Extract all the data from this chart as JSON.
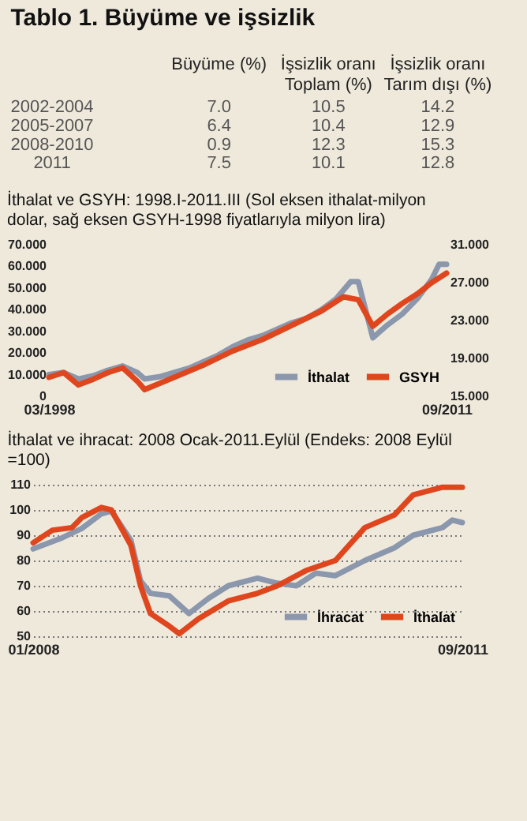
{
  "chart_data": [
    {
      "type": "other",
      "title": "Tablo 1. Büyüme ve işsizlik",
      "categories": [
        "2002-2004",
        "2005-2007",
        "2008-2010",
        "2011"
      ],
      "series": [
        {
          "name": "Büyüme (%)",
          "values": [
            7.0,
            6.4,
            0.9,
            7.5
          ],
          "value_labels": [
            "7.0",
            "6.4",
            "0.9",
            "7.5"
          ]
        },
        {
          "name": "İşsizlik oranı\nToplam (%)",
          "values": [
            10.5,
            10.4,
            12.3,
            10.1
          ],
          "value_labels": [
            "10.5",
            "10.4",
            "12.3",
            "10.1"
          ]
        },
        {
          "name": "İşsizlik oranı\nTarım dışı (%)",
          "values": [
            14.2,
            12.9,
            15.3,
            12.8
          ],
          "value_labels": [
            "14.2",
            "12.9",
            "15.3",
            "12.8"
          ]
        }
      ]
    },
    {
      "type": "line",
      "title": "İthalat ve GSYH: 1998.I-2011.III (Sol eksen ithalat-milyon dolar, sağ eksen GSYH-1998 fiyatlarıyla milyon lira)",
      "xlim": [
        "1998-03",
        "2011-09"
      ],
      "xticks": [
        {
          "value": "1998-03",
          "label": "03/1998"
        },
        {
          "value": "2011-09",
          "label": "09/2011"
        }
      ],
      "ylim": [
        0,
        70
      ],
      "yticks": [
        0,
        {
          "value": 10,
          "label": "10.000"
        },
        {
          "value": 20,
          "label": "20.000"
        },
        {
          "value": 30,
          "label": "30.000"
        },
        {
          "value": 40,
          "label": "40.000"
        },
        {
          "value": 50,
          "label": "50.000"
        },
        {
          "value": 60,
          "label": "60.000"
        },
        {
          "value": 70,
          "label": "70.000"
        }
      ],
      "y2lim": [
        15,
        31
      ],
      "y2ticks": [
        {
          "value": 15,
          "label": "15.000"
        },
        {
          "value": 19,
          "label": "19.000"
        },
        {
          "value": 23,
          "label": "23.000"
        },
        {
          "value": 27,
          "label": "27.000"
        },
        {
          "value": 31,
          "label": "31.000"
        }
      ],
      "legend": "bottom right",
      "grid": false,
      "series": [
        {
          "name": "İthalat",
          "color": "#8a97ad",
          "x": [
            "1998-03",
            "1998-09",
            "1999-03",
            "1999-09",
            "2000-03",
            "2000-09",
            "2001-03",
            "2001-06",
            "2001-12",
            "2002-06",
            "2002-12",
            "2003-06",
            "2003-12",
            "2004-06",
            "2004-12",
            "2005-06",
            "2005-12",
            "2006-06",
            "2006-12",
            "2007-06",
            "2007-12",
            "2008-06",
            "2008-09",
            "2009-03",
            "2009-09",
            "2010-03",
            "2010-09",
            "2011-03",
            "2011-06",
            "2011-09"
          ],
          "values": [
            10,
            11,
            8,
            9.5,
            12,
            14,
            11,
            8,
            9,
            11,
            13,
            16,
            19,
            23,
            26,
            28,
            31,
            34,
            36,
            40,
            45,
            53,
            53,
            27,
            33,
            38,
            45,
            54,
            61,
            61
          ]
        },
        {
          "name": "GSYH",
          "color": "#e0461e",
          "axis": "y2",
          "x": [
            "1998-03",
            "1998-09",
            "1999-03",
            "1999-09",
            "2000-03",
            "2000-09",
            "2001-03",
            "2001-06",
            "2002-06",
            "2003-06",
            "2004-06",
            "2005-06",
            "2006-06",
            "2007-06",
            "2008-03",
            "2008-09",
            "2009-03",
            "2009-09",
            "2010-03",
            "2010-09",
            "2011-03",
            "2011-09"
          ],
          "values": [
            17,
            17.5,
            16.2,
            16.8,
            17.5,
            18,
            16.6,
            15.7,
            17,
            18.3,
            19.8,
            21,
            22.5,
            24,
            25.5,
            25.2,
            22.4,
            23.7,
            24.8,
            25.8,
            27,
            28
          ]
        }
      ]
    },
    {
      "type": "line",
      "title": "İthalat ve ihracat: 2008 Ocak-2011.Eylül (Endeks: 2008 Eylül =100)",
      "xlim": [
        "2008-01",
        "2011-09"
      ],
      "xticks": [
        {
          "value": "2008-01",
          "label": "01/2008"
        },
        {
          "value": "2011-09",
          "label": "09/2011"
        }
      ],
      "ylim": [
        50,
        110
      ],
      "yticks": [
        50,
        60,
        70,
        80,
        90,
        100,
        110
      ],
      "grid": "y",
      "legend": "bottom right",
      "series": [
        {
          "name": "İhracat",
          "color": "#8a97ad",
          "x": [
            "2008-01",
            "2008-04",
            "2008-06",
            "2008-08",
            "2008-09",
            "2008-11",
            "2008-12",
            "2009-01",
            "2009-03",
            "2009-05",
            "2009-07",
            "2009-09",
            "2009-12",
            "2010-02",
            "2010-04",
            "2010-06",
            "2010-08",
            "2010-11",
            "2011-02",
            "2011-04",
            "2011-07",
            "2011-08",
            "2011-09"
          ],
          "values": [
            84.6,
            89,
            92.7,
            98.5,
            99.6,
            88,
            72,
            67,
            66,
            59,
            65,
            70,
            73,
            71,
            70,
            75,
            74,
            80,
            85,
            90,
            93,
            96,
            95
          ]
        },
        {
          "name": "İthalat",
          "color": "#e0461e",
          "x": [
            "2008-01",
            "2008-03",
            "2008-05",
            "2008-06",
            "2008-08",
            "2008-09",
            "2008-11",
            "2008-12",
            "2009-01",
            "2009-03",
            "2009-04",
            "2009-06",
            "2009-09",
            "2009-12",
            "2010-02",
            "2010-05",
            "2010-08",
            "2010-11",
            "2011-02",
            "2011-04",
            "2011-07",
            "2011-09"
          ],
          "values": [
            87,
            92,
            93,
            97,
            101,
            100,
            86,
            70,
            59,
            54,
            51,
            57,
            64,
            67,
            70,
            76,
            80,
            93,
            98,
            106,
            109,
            109
          ]
        }
      ]
    }
  ]
}
